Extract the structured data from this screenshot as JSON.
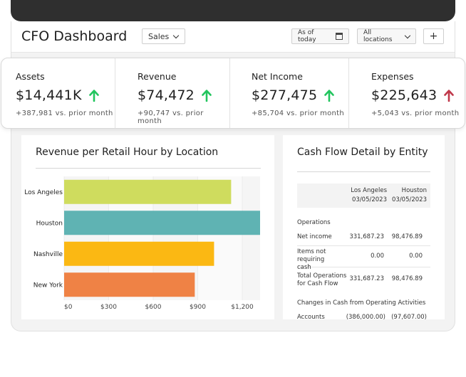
{
  "header": {
    "title": "CFO Dashboard",
    "sales_dropdown": "Sales",
    "date_button": "As of today",
    "locations_dropdown": "All locations",
    "add_button": "+"
  },
  "kpis": [
    {
      "label": "Assets",
      "value": "$14,441K",
      "trend": "up",
      "sub": "+387,981 vs. prior month"
    },
    {
      "label": "Revenue",
      "value": "$74,472",
      "trend": "up",
      "sub": "+90,747 vs. prior month"
    },
    {
      "label": "Net Income",
      "value": "$277,475",
      "trend": "up",
      "sub": "+85,704 vs. prior month"
    },
    {
      "label": "Expenses",
      "value": "$225,643",
      "trend": "up-negative",
      "sub": "+5,043 vs. prior month"
    }
  ],
  "colors": {
    "arrow_good": "#22c55e",
    "arrow_bad": "#c0394b"
  },
  "revenue_chart": {
    "title": "Revenue per Retail Hour by Location"
  },
  "chart_data": {
    "type": "bar",
    "orientation": "horizontal",
    "categories": [
      "Los Angeles",
      "Houston",
      "Nashville",
      "New York"
    ],
    "values": [
      1125,
      1320,
      1010,
      880
    ],
    "colors": [
      "#cfdc5e",
      "#5fb3b3",
      "#fbb813",
      "#ef8245"
    ],
    "xlim": [
      0,
      1320
    ],
    "xticks": [
      0,
      300,
      600,
      900,
      1200
    ],
    "xtick_labels": [
      "$0",
      "$300",
      "$600",
      "$900",
      "$1,200"
    ]
  },
  "cash_flow": {
    "title": "Cash Flow Detail by Entity",
    "columns": [
      {
        "entity": "Los Angeles",
        "date": "03/05/2023"
      },
      {
        "entity": "Houston",
        "date": "03/05/2023"
      }
    ],
    "section_operations": "Operations",
    "rows": [
      {
        "label": "Net income",
        "values": [
          "331,687.23",
          "98,476.89"
        ]
      },
      {
        "label": "Items not requiring cash",
        "values": [
          "0.00",
          "0.00"
        ]
      },
      {
        "label": "Total Operations for Cash Flow",
        "values": [
          "331,687.23",
          "98,476.89"
        ]
      }
    ],
    "section_changes": "Changes in Cash from Operating Activities",
    "accounts_row": {
      "label": "Accounts",
      "values": [
        "(386,000.00)",
        "(97,607.00)"
      ]
    }
  }
}
